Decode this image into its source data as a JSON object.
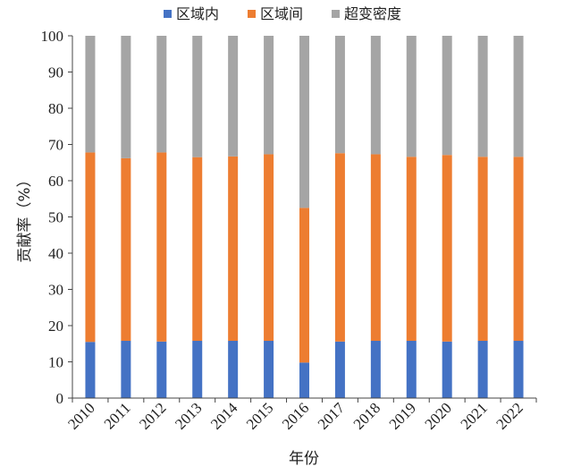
{
  "chart_data": {
    "type": "bar",
    "stacked": true,
    "title": "",
    "xlabel": "年份",
    "ylabel": "贡献率（%）",
    "ylim": [
      0,
      100
    ],
    "yticks": [
      0,
      10,
      20,
      30,
      40,
      50,
      60,
      70,
      80,
      90,
      100
    ],
    "grid": false,
    "legend_position": "top",
    "categories": [
      "2010",
      "2011",
      "2012",
      "2013",
      "2014",
      "2015",
      "2016",
      "2017",
      "2018",
      "2019",
      "2020",
      "2021",
      "2022"
    ],
    "series": [
      {
        "name": "区域内",
        "color": "#4472C4",
        "values": [
          15.5,
          15.8,
          15.6,
          15.8,
          15.8,
          15.8,
          9.8,
          15.6,
          15.8,
          15.8,
          15.6,
          15.8,
          15.8
        ]
      },
      {
        "name": "区域间",
        "color": "#ED7D31",
        "values": [
          52.3,
          50.4,
          52.2,
          50.7,
          50.9,
          51.5,
          42.7,
          52.0,
          51.5,
          50.8,
          51.5,
          50.8,
          50.8
        ]
      },
      {
        "name": "超变密度",
        "color": "#A5A5A5",
        "values": [
          32.2,
          33.8,
          32.2,
          33.5,
          33.3,
          32.7,
          47.5,
          32.4,
          32.7,
          33.4,
          32.9,
          33.4,
          33.4
        ]
      }
    ]
  }
}
